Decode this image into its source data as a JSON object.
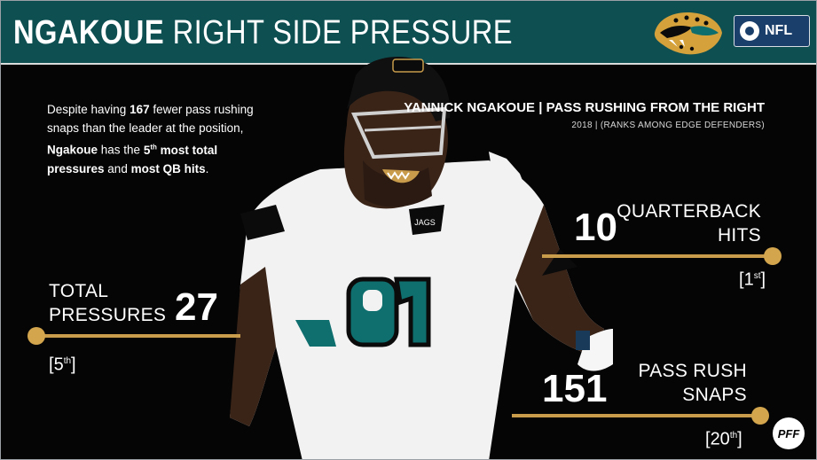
{
  "header": {
    "title_bold": "NGAKOUE",
    "title_rest": "RIGHT SIDE PRESSURE",
    "network_label": "NFL"
  },
  "intro": {
    "p1": "Despite having ",
    "fewer_count": "167",
    "p2": " fewer pass rushing snaps than the leader at the position, ",
    "name": "Ngakoue",
    "p3": " has the ",
    "rank_num": "5",
    "rank_suffix": "th",
    "p4": " most total pressures",
    "p5": " and ",
    "p6": "most QB hits",
    "p7": "."
  },
  "right_header": {
    "title": "YANNICK NGAKOUE | PASS RUSHING FROM THE RIGHT",
    "subtitle": "2018 | (RANKS AMONG EDGE DEFENDERS)"
  },
  "stats": {
    "qb_hits": {
      "label_line1": "QUARTERBACK",
      "label_line2": "HITS",
      "value": "10",
      "rank_num": "1",
      "rank_suffix": "st"
    },
    "total_pressures": {
      "label_line1": "TOTAL",
      "label_line2": "PRESSURES",
      "value": "27",
      "rank_num": "5",
      "rank_suffix": "th"
    },
    "pass_rush_snaps": {
      "label_line1": "PASS RUSH",
      "label_line2": "SNAPS",
      "value": "151",
      "rank_num": "20",
      "rank_suffix": "th"
    }
  },
  "player": {
    "jersey_number": "91",
    "helmet_text": "JAGS"
  },
  "footer": {
    "logo_text": "PFF"
  },
  "colors": {
    "header_bg": "#0e4f52",
    "accent_gold": "#c89c4b",
    "teal": "#0f6e6e",
    "background": "#050505"
  },
  "icons": {
    "team_logo": "jaguar-head-icon",
    "network_logo": "cbs-nfl-icon",
    "brand_logo": "pff-icon"
  }
}
